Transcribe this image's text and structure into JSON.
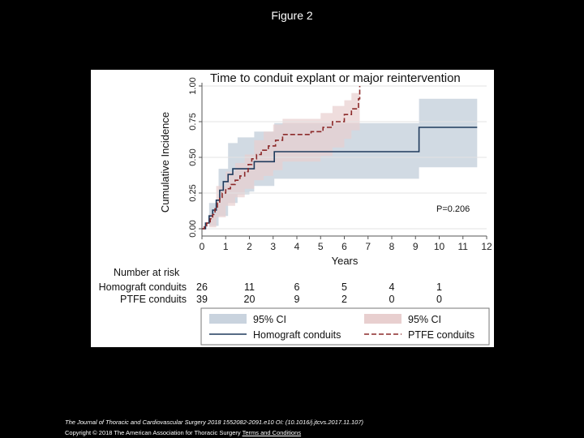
{
  "slide": {
    "title": "Figure 2",
    "citation": "The Journal of Thoracic and Cardiovascular Surgery 2018 1552082-2091.e10 OI: (10.1016/j.jtcvs.2017.11.107)",
    "copyright": "Copyright © 2018 The American Association for Thoracic Surgery",
    "terms_link": "Terms and Conditions"
  },
  "colors": {
    "homograft_line": "#1f3a5c",
    "homograft_ci": "#c9d3de",
    "ptfe_line": "#8c2a2a",
    "ptfe_ci": "#e8cfcf",
    "grid": "#e3e3e3"
  },
  "chart_data": {
    "type": "line",
    "title": "Time to conduit explant or major reintervention",
    "xlabel": "Years",
    "ylabel": "Cumulative Incidence",
    "xlim": [
      0,
      12
    ],
    "ylim": [
      0,
      1
    ],
    "xticks": [
      0,
      1,
      2,
      3,
      4,
      5,
      6,
      7,
      8,
      9,
      10,
      11,
      12
    ],
    "yticks": [
      0.0,
      0.25,
      0.5,
      0.75,
      1.0
    ],
    "ytick_labels": [
      "0.00",
      "0.25",
      "0.50",
      "0.75",
      "1.00"
    ],
    "grid": true,
    "annotation": "P=0.206",
    "series": [
      {
        "name": "Homograft conduits",
        "style": "solid",
        "steps": [
          [
            0,
            0
          ],
          [
            0.15,
            0.04
          ],
          [
            0.3,
            0.09
          ],
          [
            0.45,
            0.13
          ],
          [
            0.6,
            0.2
          ],
          [
            0.75,
            0.27
          ],
          [
            0.9,
            0.33
          ],
          [
            1.1,
            0.38
          ],
          [
            1.3,
            0.42
          ],
          [
            2.0,
            0.42
          ],
          [
            2.2,
            0.47
          ],
          [
            2.9,
            0.47
          ],
          [
            3.05,
            0.54
          ],
          [
            5.5,
            0.54
          ],
          [
            6.5,
            0.54
          ],
          [
            9.1,
            0.54
          ],
          [
            9.15,
            0.71
          ],
          [
            11.6,
            0.71
          ]
        ],
        "ci_upper": [
          [
            0,
            0
          ],
          [
            0.3,
            0.18
          ],
          [
            0.7,
            0.42
          ],
          [
            1.1,
            0.6
          ],
          [
            1.5,
            0.64
          ],
          [
            2.0,
            0.64
          ],
          [
            2.2,
            0.68
          ],
          [
            2.9,
            0.68
          ],
          [
            3.05,
            0.74
          ],
          [
            5.5,
            0.74
          ],
          [
            9.1,
            0.74
          ],
          [
            9.15,
            0.91
          ],
          [
            11.6,
            0.91
          ]
        ],
        "ci_lower": [
          [
            0,
            0
          ],
          [
            0.3,
            0.02
          ],
          [
            0.7,
            0.09
          ],
          [
            1.1,
            0.18
          ],
          [
            1.5,
            0.24
          ],
          [
            2.0,
            0.26
          ],
          [
            2.2,
            0.3
          ],
          [
            2.9,
            0.3
          ],
          [
            3.05,
            0.35
          ],
          [
            5.5,
            0.35
          ],
          [
            9.1,
            0.35
          ],
          [
            9.15,
            0.43
          ],
          [
            11.6,
            0.43
          ]
        ]
      },
      {
        "name": "PTFE conduits",
        "style": "dashed",
        "steps": [
          [
            0,
            0
          ],
          [
            0.1,
            0.02
          ],
          [
            0.2,
            0.04
          ],
          [
            0.35,
            0.07
          ],
          [
            0.45,
            0.1
          ],
          [
            0.55,
            0.14
          ],
          [
            0.65,
            0.18
          ],
          [
            0.75,
            0.22
          ],
          [
            0.85,
            0.25
          ],
          [
            1.0,
            0.28
          ],
          [
            1.2,
            0.31
          ],
          [
            1.4,
            0.34
          ],
          [
            1.6,
            0.37
          ],
          [
            1.8,
            0.4
          ],
          [
            1.95,
            0.45
          ],
          [
            2.1,
            0.49
          ],
          [
            2.3,
            0.52
          ],
          [
            2.5,
            0.55
          ],
          [
            2.8,
            0.58
          ],
          [
            3.1,
            0.62
          ],
          [
            3.4,
            0.66
          ],
          [
            4.2,
            0.66
          ],
          [
            4.6,
            0.68
          ],
          [
            5.1,
            0.71
          ],
          [
            5.5,
            0.75
          ],
          [
            6.0,
            0.8
          ],
          [
            6.3,
            0.84
          ],
          [
            6.6,
            0.91
          ],
          [
            6.65,
            1.0
          ]
        ],
        "ci_upper": [
          [
            0,
            0
          ],
          [
            0.3,
            0.1
          ],
          [
            0.6,
            0.3
          ],
          [
            1.0,
            0.4
          ],
          [
            1.4,
            0.46
          ],
          [
            1.8,
            0.52
          ],
          [
            2.2,
            0.62
          ],
          [
            2.6,
            0.68
          ],
          [
            3.0,
            0.73
          ],
          [
            3.4,
            0.77
          ],
          [
            4.2,
            0.77
          ],
          [
            5.0,
            0.81
          ],
          [
            5.5,
            0.86
          ],
          [
            6.0,
            0.9
          ],
          [
            6.3,
            0.95
          ],
          [
            6.65,
            1.0
          ]
        ],
        "ci_lower": [
          [
            0,
            0
          ],
          [
            0.3,
            0.01
          ],
          [
            0.6,
            0.08
          ],
          [
            1.0,
            0.16
          ],
          [
            1.4,
            0.22
          ],
          [
            1.8,
            0.28
          ],
          [
            2.2,
            0.34
          ],
          [
            2.6,
            0.37
          ],
          [
            3.0,
            0.41
          ],
          [
            3.4,
            0.47
          ],
          [
            4.2,
            0.47
          ],
          [
            5.0,
            0.51
          ],
          [
            5.5,
            0.57
          ],
          [
            6.0,
            0.63
          ],
          [
            6.3,
            0.69
          ],
          [
            6.65,
            0.74
          ]
        ]
      }
    ],
    "risk_table": {
      "header": "Number at risk",
      "years": [
        0,
        2,
        4,
        6,
        8,
        10
      ],
      "rows": [
        {
          "label": "Homograft conduits",
          "values": [
            "26",
            "11",
            "6",
            "5",
            "4",
            "1"
          ]
        },
        {
          "label": "PTFE conduits",
          "values": [
            "39",
            "20",
            "9",
            "2",
            "0",
            "0"
          ]
        }
      ]
    },
    "legend": {
      "placement": "bottom",
      "items": [
        {
          "label": "95% CI",
          "kind": "ci-homograft"
        },
        {
          "label": "95% CI",
          "kind": "ci-ptfe"
        },
        {
          "label": "Homograft conduits",
          "kind": "line-homograft"
        },
        {
          "label": "PTFE conduits",
          "kind": "line-ptfe"
        }
      ]
    }
  }
}
